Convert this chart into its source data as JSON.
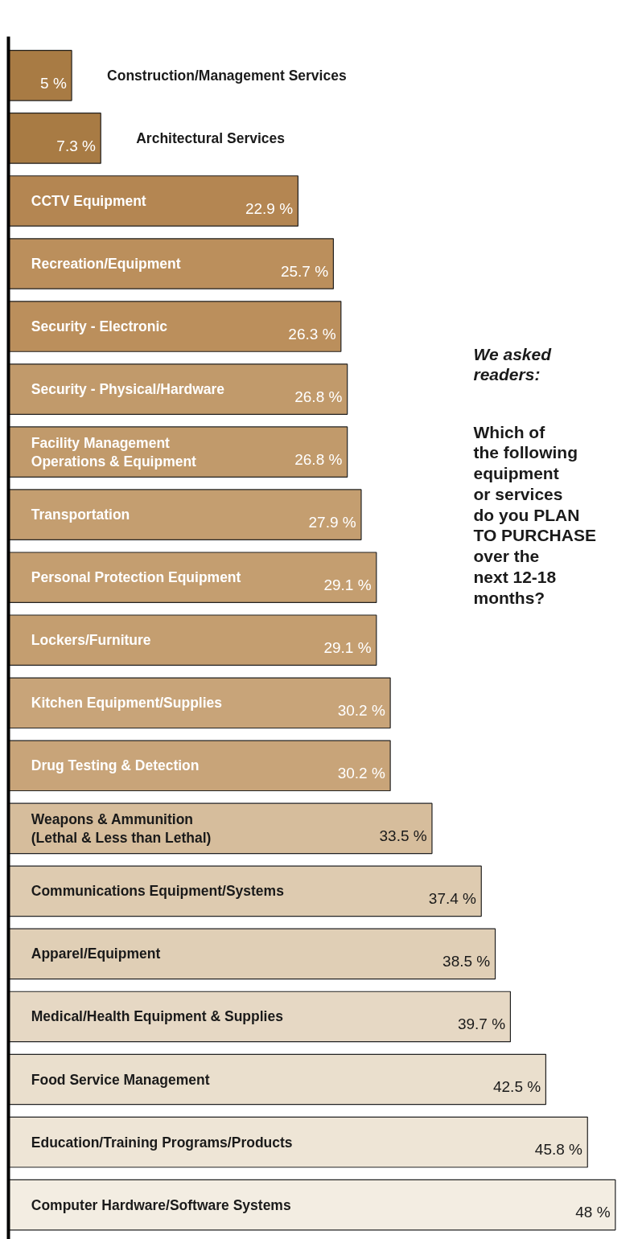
{
  "chart_data": {
    "type": "bar",
    "orientation": "horizontal",
    "categories": [
      "Construction/Management Services",
      "Architectural Services",
      "CCTV Equipment",
      "Recreation/Equipment",
      "Security - Electronic",
      "Security - Physical/Hardware",
      "Facility Management\nOperations & Equipment",
      "Transportation",
      "Personal Protection Equipment",
      "Lockers/Furniture",
      "Kitchen Equipment/Supplies",
      "Drug Testing & Detection",
      "Weapons & Ammunition\n(Lethal & Less than Lethal)",
      "Communications Equipment/Systems",
      "Apparel/Equipment",
      "Medical/Health Equipment & Supplies",
      "Food Service Management",
      "Education/Training Programs/Products",
      "Computer Hardware/Software Systems"
    ],
    "values": [
      5,
      7.3,
      22.9,
      25.7,
      26.3,
      26.8,
      26.8,
      27.9,
      29.1,
      29.1,
      30.2,
      30.2,
      33.5,
      37.4,
      38.5,
      39.7,
      42.5,
      45.8,
      48
    ],
    "value_labels": [
      "5 %",
      "7.3 %",
      "22.9 %",
      "25.7 %",
      "26.3 %",
      "26.8 %",
      "26.8 %",
      "27.9 %",
      "29.1 %",
      "29.1 %",
      "30.2 %",
      "30.2 %",
      "33.5 %",
      "37.4 %",
      "38.5 %",
      "39.7 %",
      "42.5 %",
      "45.8 %",
      "48 %"
    ],
    "colors": [
      "#a87b44",
      "#a87b44",
      "#b48652",
      "#bb8f5c",
      "#bb8f5c",
      "#c19a6b",
      "#c19a6b",
      "#c49e70",
      "#c49e70",
      "#c49e70",
      "#c8a479",
      "#c8a479",
      "#d6bd9c",
      "#decbb0",
      "#e0cfb6",
      "#e6d8c4",
      "#eadfcd",
      "#eee5d6",
      "#f3ede2"
    ],
    "annotations": [
      "We asked\nreaders:",
      "Which of\nthe following\nequipment\nor services\ndo you PLAN\nTO PURCHASE\nover the\nnext 12-18\nmonths?"
    ]
  }
}
